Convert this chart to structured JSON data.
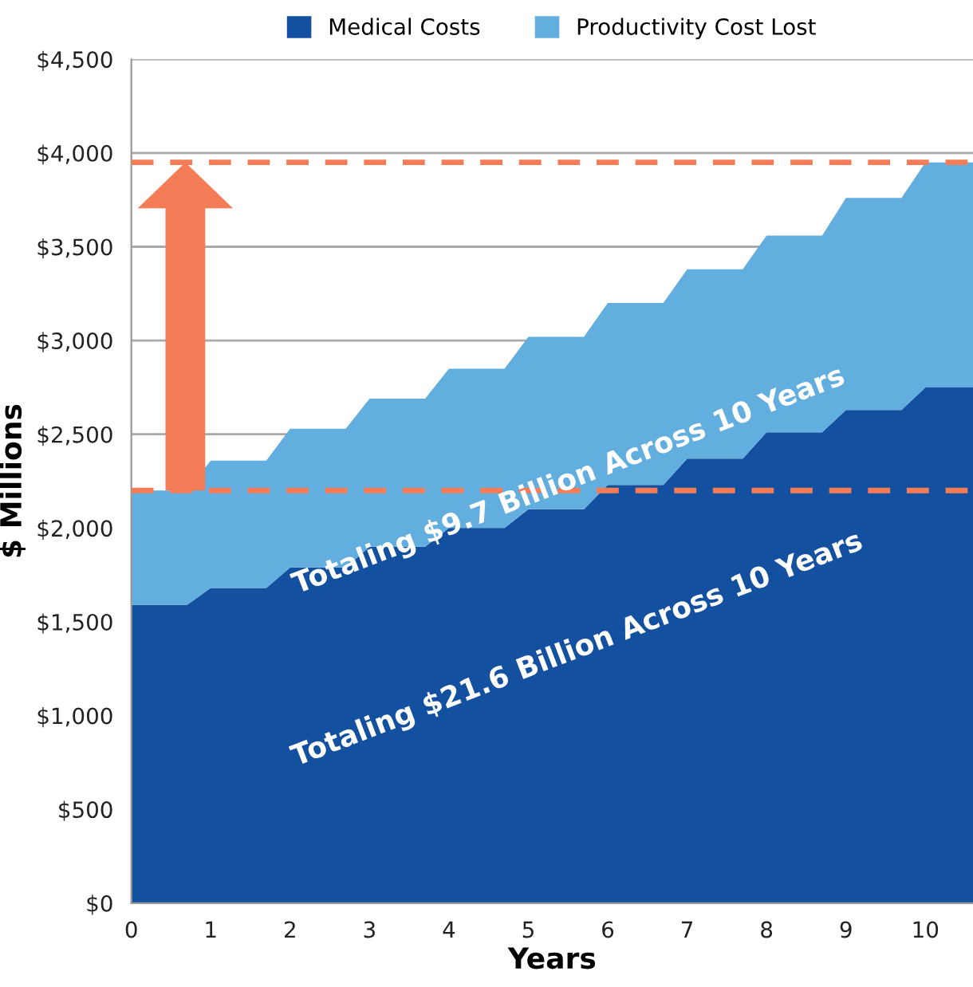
{
  "chart_data": {
    "type": "area",
    "stacked": true,
    "xlabel": "Years",
    "ylabel": "$ Millions",
    "x": [
      0,
      0.7,
      1,
      1.7,
      2,
      2.7,
      3,
      3.7,
      4,
      4.7,
      5,
      5.7,
      6,
      6.7,
      7,
      7.7,
      8,
      8.7,
      9,
      9.7,
      10,
      10.6
    ],
    "series": [
      {
        "name": "Medical Costs",
        "color": "#1450a0",
        "values": [
          1590,
          1590,
          1680,
          1680,
          1790,
          1790,
          1900,
          1900,
          2000,
          2000,
          2100,
          2100,
          2230,
          2230,
          2370,
          2370,
          2510,
          2510,
          2630,
          2630,
          2750,
          2750
        ]
      },
      {
        "name": "Productivity Cost Lost",
        "color": "#62aede",
        "values": [
          610,
          610,
          680,
          680,
          740,
          740,
          790,
          790,
          850,
          850,
          920,
          920,
          970,
          970,
          1010,
          1010,
          1050,
          1050,
          1130,
          1130,
          1200,
          1200
        ]
      }
    ],
    "xlim": [
      0,
      10.6
    ],
    "xticks": [
      0,
      1,
      2,
      3,
      4,
      5,
      6,
      7,
      8,
      9,
      10
    ],
    "ylim": [
      0,
      4500
    ],
    "yticks": [
      {
        "value": 0,
        "label": "$0"
      },
      {
        "value": 500,
        "label": "$500"
      },
      {
        "value": 1000,
        "label": "$1,000"
      },
      {
        "value": 1500,
        "label": "$1,500"
      },
      {
        "value": 2000,
        "label": "$2,000"
      },
      {
        "value": 2500,
        "label": "$2,500"
      },
      {
        "value": 3000,
        "label": "$3,000"
      },
      {
        "value": 3500,
        "label": "$3,500"
      },
      {
        "value": 4000,
        "label": "$4,000"
      },
      {
        "value": 4500,
        "label": "$4,500"
      }
    ],
    "grid": "y",
    "legend": "top",
    "ref_lines": [
      {
        "axis": "y",
        "value": 2200,
        "color": "#f47c56",
        "line_style": "dashed"
      },
      {
        "axis": "y",
        "value": 3950,
        "color": "#f47c56",
        "line_style": "dashed"
      }
    ],
    "annotations": [
      "Totaling $9.7 Billion Across 10 Years",
      "Totaling $21.6 Billion Across 10 Years"
    ]
  }
}
